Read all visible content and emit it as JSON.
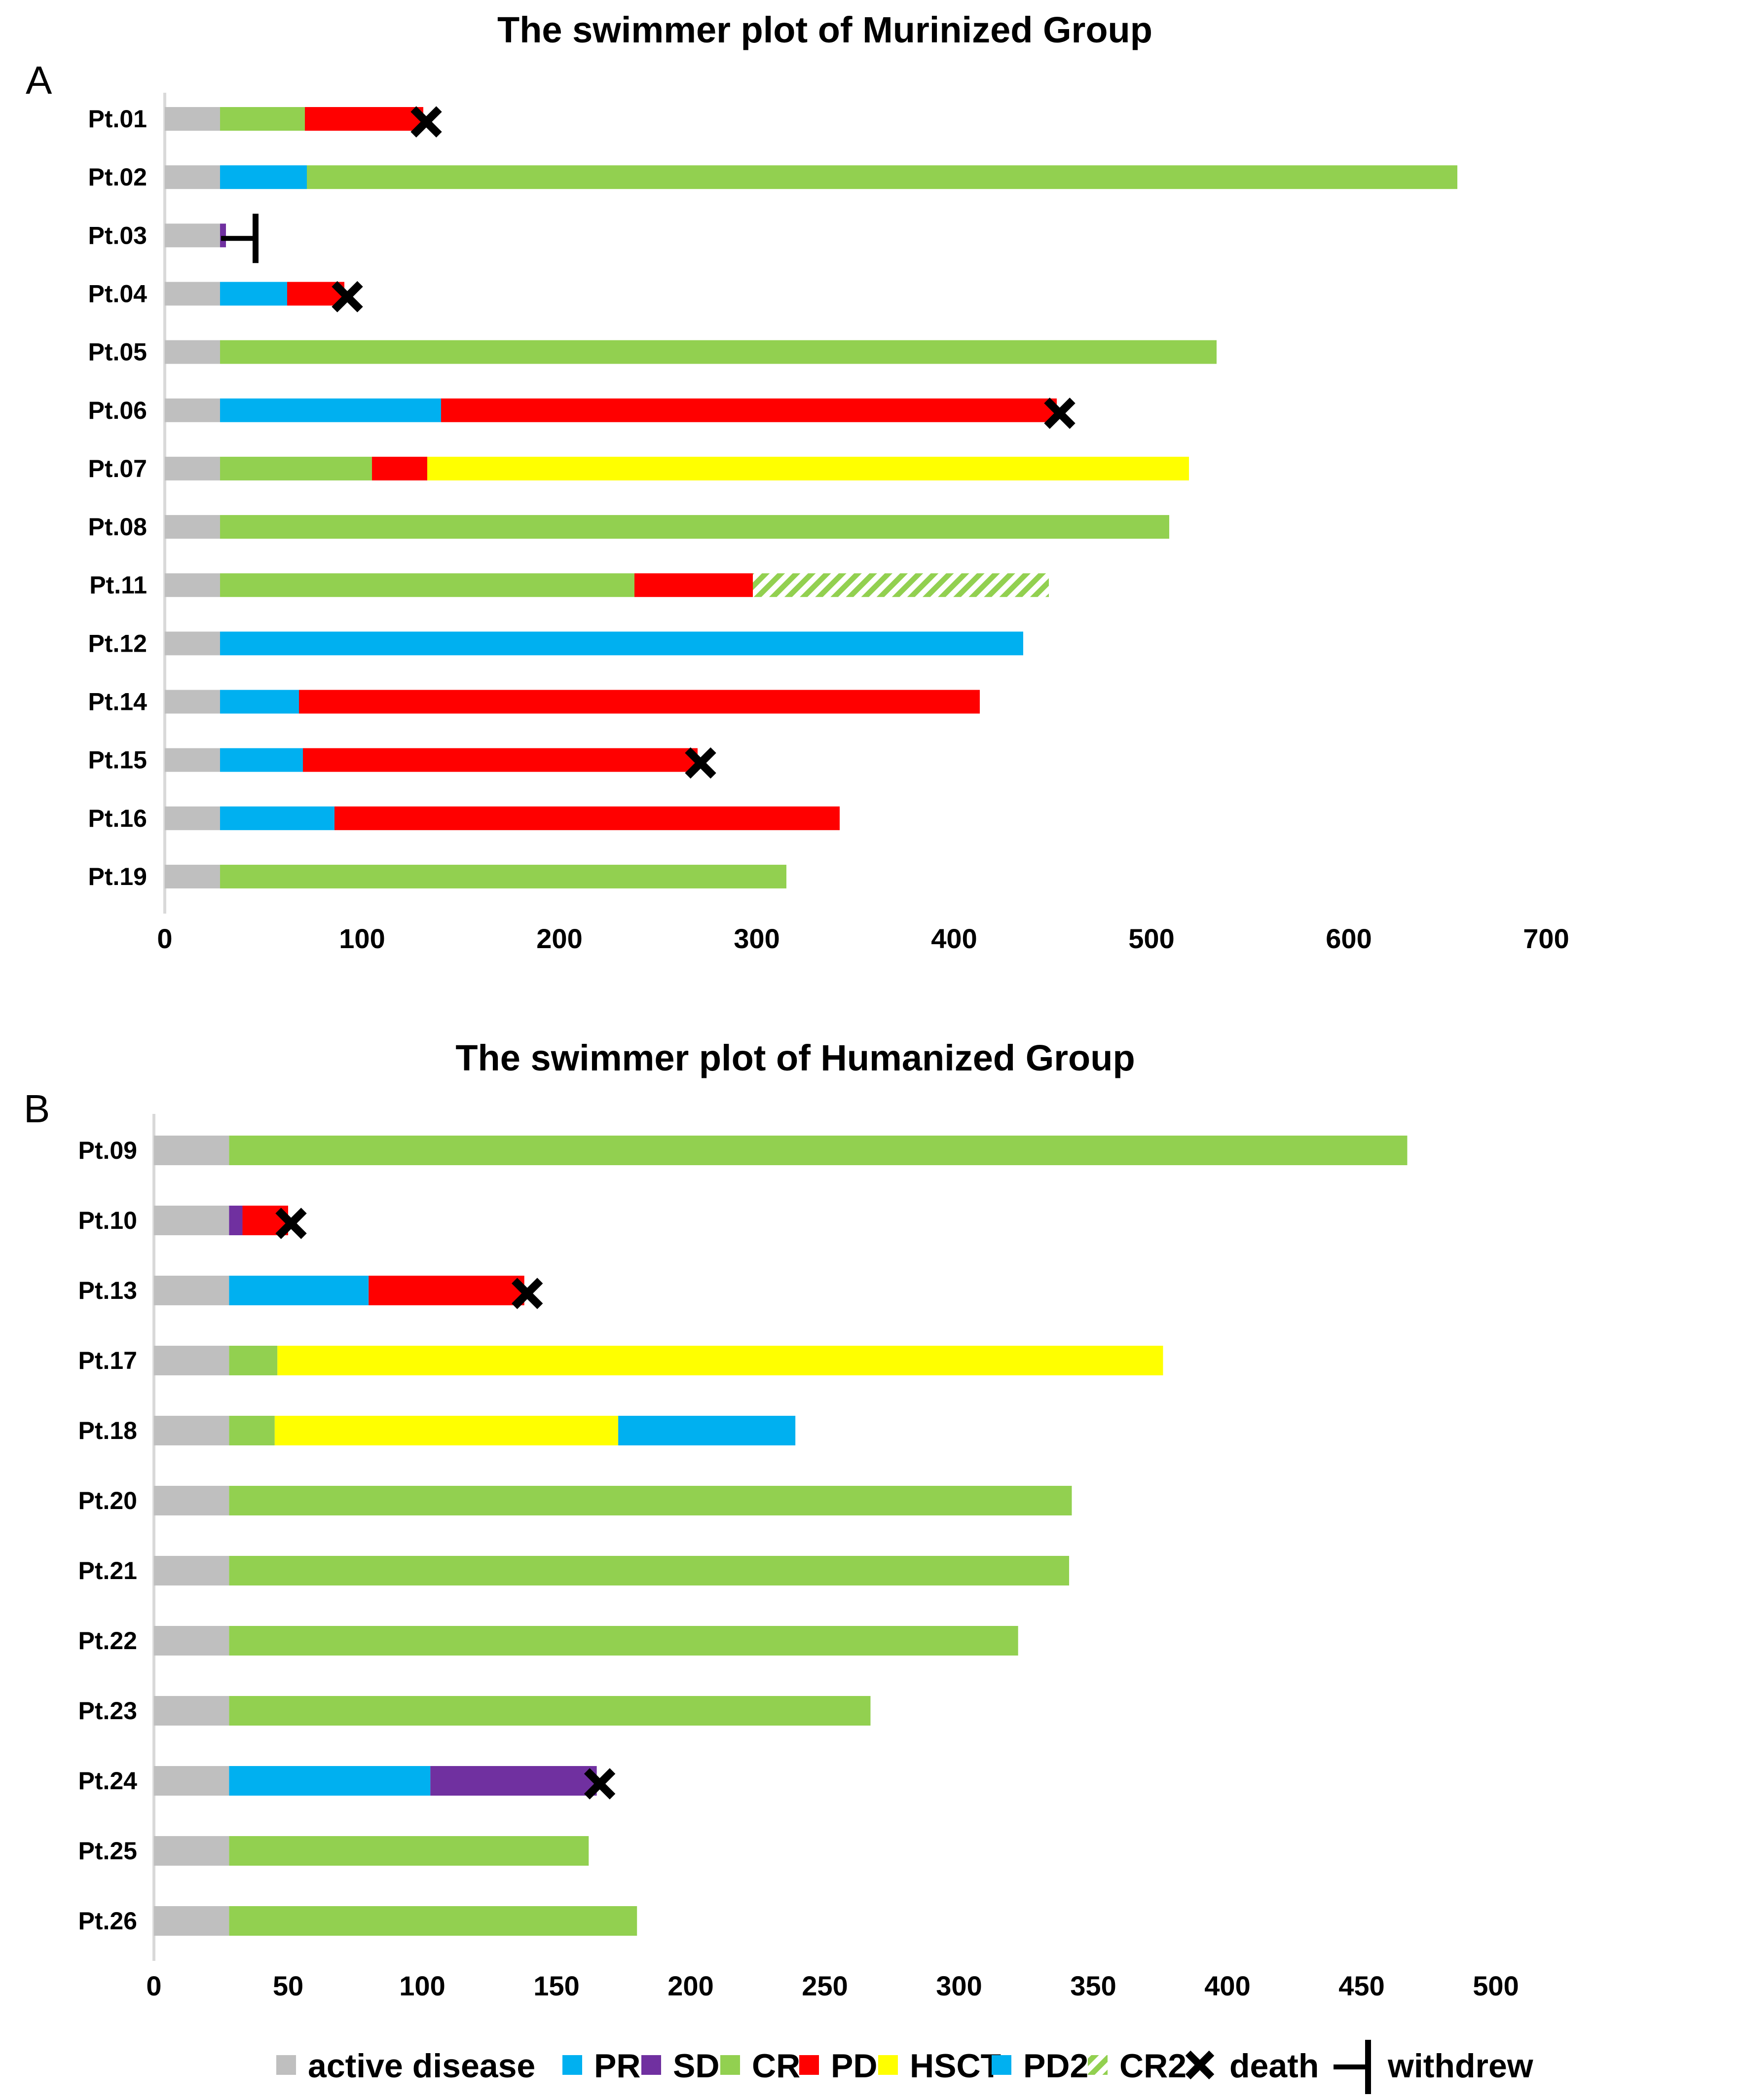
{
  "colors": {
    "active_disease": "#bfbfbf",
    "PR": "#00b0f0",
    "SD": "#7030a0",
    "CR": "#92d050",
    "PD": "#ff0000",
    "HSCT": "#ffff00",
    "PD2": "#00b0f0",
    "CR2": "#92d050",
    "axis": "#d9d9d9",
    "marker": "#000000"
  },
  "chart_data": [
    {
      "type": "bar",
      "orientation": "horizontal",
      "stacked": true,
      "panel": "A",
      "title": "The swimmer plot of Murinized  Group",
      "xlabel": "",
      "ylabel": "",
      "xlim": [
        0,
        700
      ],
      "xticks": [
        0,
        100,
        200,
        300,
        400,
        500,
        600,
        700
      ],
      "grid": false,
      "patients": [
        {
          "label": "Pt.01",
          "segments": [
            {
              "state": "active_disease",
              "start": 0,
              "end": 28
            },
            {
              "state": "CR",
              "start": 28,
              "end": 71
            },
            {
              "state": "PD",
              "start": 71,
              "end": 131
            }
          ],
          "event": {
            "type": "death",
            "at": 131
          }
        },
        {
          "label": "Pt.02",
          "segments": [
            {
              "state": "active_disease",
              "start": 0,
              "end": 28
            },
            {
              "state": "PR",
              "start": 28,
              "end": 72
            },
            {
              "state": "CR",
              "start": 72,
              "end": 655
            }
          ]
        },
        {
          "label": "Pt.03",
          "segments": [
            {
              "state": "active_disease",
              "start": 0,
              "end": 28
            },
            {
              "state": "SD",
              "start": 28,
              "end": 31
            }
          ],
          "event": {
            "type": "withdrew",
            "at": 46
          }
        },
        {
          "label": "Pt.04",
          "segments": [
            {
              "state": "active_disease",
              "start": 0,
              "end": 28
            },
            {
              "state": "PR",
              "start": 28,
              "end": 62
            },
            {
              "state": "PD",
              "start": 62,
              "end": 91
            }
          ],
          "event": {
            "type": "death",
            "at": 91
          }
        },
        {
          "label": "Pt.05",
          "segments": [
            {
              "state": "active_disease",
              "start": 0,
              "end": 28
            },
            {
              "state": "CR",
              "start": 28,
              "end": 533
            }
          ]
        },
        {
          "label": "Pt.06",
          "segments": [
            {
              "state": "active_disease",
              "start": 0,
              "end": 28
            },
            {
              "state": "PR",
              "start": 28,
              "end": 140
            },
            {
              "state": "PD",
              "start": 140,
              "end": 452
            }
          ],
          "event": {
            "type": "death",
            "at": 452
          }
        },
        {
          "label": "Pt.07",
          "segments": [
            {
              "state": "active_disease",
              "start": 0,
              "end": 28
            },
            {
              "state": "CR",
              "start": 28,
              "end": 105
            },
            {
              "state": "PD",
              "start": 105,
              "end": 133
            },
            {
              "state": "HSCT",
              "start": 133,
              "end": 519
            }
          ]
        },
        {
          "label": "Pt.08",
          "segments": [
            {
              "state": "active_disease",
              "start": 0,
              "end": 28
            },
            {
              "state": "CR",
              "start": 28,
              "end": 509
            }
          ]
        },
        {
          "label": "Pt.11",
          "segments": [
            {
              "state": "active_disease",
              "start": 0,
              "end": 28
            },
            {
              "state": "CR",
              "start": 28,
              "end": 238
            },
            {
              "state": "PD",
              "start": 238,
              "end": 298
            },
            {
              "state": "CR2",
              "start": 298,
              "end": 448
            }
          ]
        },
        {
          "label": "Pt.12",
          "segments": [
            {
              "state": "active_disease",
              "start": 0,
              "end": 28
            },
            {
              "state": "PR",
              "start": 28,
              "end": 435
            }
          ]
        },
        {
          "label": "Pt.14",
          "segments": [
            {
              "state": "active_disease",
              "start": 0,
              "end": 28
            },
            {
              "state": "PR",
              "start": 28,
              "end": 68
            },
            {
              "state": "PD",
              "start": 68,
              "end": 413
            }
          ]
        },
        {
          "label": "Pt.15",
          "segments": [
            {
              "state": "active_disease",
              "start": 0,
              "end": 28
            },
            {
              "state": "PR",
              "start": 28,
              "end": 70
            },
            {
              "state": "PD",
              "start": 70,
              "end": 270
            }
          ],
          "event": {
            "type": "death",
            "at": 270
          }
        },
        {
          "label": "Pt.16",
          "segments": [
            {
              "state": "active_disease",
              "start": 0,
              "end": 28
            },
            {
              "state": "PR",
              "start": 28,
              "end": 86
            },
            {
              "state": "PD",
              "start": 86,
              "end": 342
            }
          ]
        },
        {
          "label": "Pt.19",
          "segments": [
            {
              "state": "active_disease",
              "start": 0,
              "end": 28
            },
            {
              "state": "CR",
              "start": 28,
              "end": 315
            }
          ]
        }
      ]
    },
    {
      "type": "bar",
      "orientation": "horizontal",
      "stacked": true,
      "panel": "B",
      "title": "The swimmer plot of Humanized  Group",
      "xlabel": "",
      "ylabel": "",
      "xlim": [
        0,
        500
      ],
      "xticks": [
        0,
        50,
        100,
        150,
        200,
        250,
        300,
        350,
        400,
        450,
        500
      ],
      "grid": false,
      "patients": [
        {
          "label": "Pt.09",
          "segments": [
            {
              "state": "active_disease",
              "start": 0,
              "end": 28
            },
            {
              "state": "CR",
              "start": 28,
              "end": 467
            }
          ]
        },
        {
          "label": "Pt.10",
          "segments": [
            {
              "state": "active_disease",
              "start": 0,
              "end": 28
            },
            {
              "state": "SD",
              "start": 28,
              "end": 33
            },
            {
              "state": "PD",
              "start": 33,
              "end": 50
            }
          ],
          "event": {
            "type": "death",
            "at": 50
          }
        },
        {
          "label": "Pt.13",
          "segments": [
            {
              "state": "active_disease",
              "start": 0,
              "end": 28
            },
            {
              "state": "PR",
              "start": 28,
              "end": 80
            },
            {
              "state": "PD",
              "start": 80,
              "end": 138
            }
          ],
          "event": {
            "type": "death",
            "at": 138
          }
        },
        {
          "label": "Pt.17",
          "segments": [
            {
              "state": "active_disease",
              "start": 0,
              "end": 28
            },
            {
              "state": "CR",
              "start": 28,
              "end": 46
            },
            {
              "state": "HSCT",
              "start": 46,
              "end": 376
            }
          ]
        },
        {
          "label": "Pt.18",
          "segments": [
            {
              "state": "active_disease",
              "start": 0,
              "end": 28
            },
            {
              "state": "CR",
              "start": 28,
              "end": 45
            },
            {
              "state": "HSCT",
              "start": 45,
              "end": 173
            },
            {
              "state": "PD2",
              "start": 173,
              "end": 239
            }
          ]
        },
        {
          "label": "Pt.20",
          "segments": [
            {
              "state": "active_disease",
              "start": 0,
              "end": 28
            },
            {
              "state": "CR",
              "start": 28,
              "end": 342
            }
          ]
        },
        {
          "label": "Pt.21",
          "segments": [
            {
              "state": "active_disease",
              "start": 0,
              "end": 28
            },
            {
              "state": "CR",
              "start": 28,
              "end": 341
            }
          ]
        },
        {
          "label": "Pt.22",
          "segments": [
            {
              "state": "active_disease",
              "start": 0,
              "end": 28
            },
            {
              "state": "CR",
              "start": 28,
              "end": 322
            }
          ]
        },
        {
          "label": "Pt.23",
          "segments": [
            {
              "state": "active_disease",
              "start": 0,
              "end": 28
            },
            {
              "state": "CR",
              "start": 28,
              "end": 267
            }
          ]
        },
        {
          "label": "Pt.24",
          "segments": [
            {
              "state": "active_disease",
              "start": 0,
              "end": 28
            },
            {
              "state": "PR",
              "start": 28,
              "end": 103
            },
            {
              "state": "SD",
              "start": 103,
              "end": 165
            }
          ],
          "event": {
            "type": "death",
            "at": 165
          }
        },
        {
          "label": "Pt.25",
          "segments": [
            {
              "state": "active_disease",
              "start": 0,
              "end": 28
            },
            {
              "state": "CR",
              "start": 28,
              "end": 162
            }
          ]
        },
        {
          "label": "Pt.26",
          "segments": [
            {
              "state": "active_disease",
              "start": 0,
              "end": 28
            },
            {
              "state": "CR",
              "start": 28,
              "end": 180
            }
          ]
        }
      ]
    }
  ],
  "legend": {
    "position": "bottom",
    "entries": [
      {
        "key": "active_disease",
        "label": "active disease",
        "symbol": "square"
      },
      {
        "key": "PR",
        "label": "PR",
        "symbol": "square"
      },
      {
        "key": "SD",
        "label": "SD",
        "symbol": "square"
      },
      {
        "key": "CR",
        "label": "CR",
        "symbol": "square"
      },
      {
        "key": "PD",
        "label": "PD",
        "symbol": "square"
      },
      {
        "key": "HSCT",
        "label": "HSCT",
        "symbol": "square"
      },
      {
        "key": "PD2",
        "label": "PD2",
        "symbol": "square"
      },
      {
        "key": "CR2",
        "label": "CR2",
        "symbol": "hatched"
      },
      {
        "key": "death",
        "label": "death",
        "symbol": "cross"
      },
      {
        "key": "withdrew",
        "label": "withdrew",
        "symbol": "bracket"
      }
    ]
  }
}
